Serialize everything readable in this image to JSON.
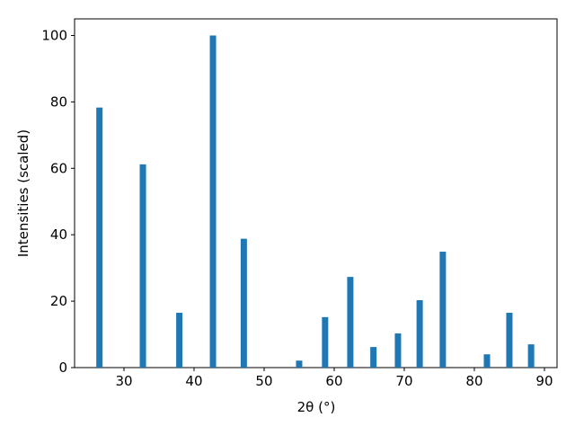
{
  "chart_data": {
    "type": "bar",
    "xlabel": "2θ (°)",
    "ylabel": "Intensities (scaled)",
    "x": [
      26.5,
      32.7,
      37.9,
      42.7,
      47.1,
      55.0,
      58.7,
      62.3,
      65.6,
      69.1,
      72.2,
      75.5,
      81.8,
      85.0,
      88.1
    ],
    "values": [
      78.3,
      61.2,
      16.5,
      100,
      38.8,
      2.1,
      15.2,
      27.3,
      6.2,
      10.3,
      20.3,
      34.9,
      4.0,
      16.5,
      7.0
    ],
    "color": "#1f77b4",
    "xlim": [
      22.95,
      91.8
    ],
    "xticks": [
      30,
      40,
      50,
      60,
      70,
      80,
      90
    ],
    "ylim": [
      0,
      105
    ],
    "yticks": [
      0,
      20,
      40,
      60,
      80,
      100
    ],
    "grid": false
  }
}
